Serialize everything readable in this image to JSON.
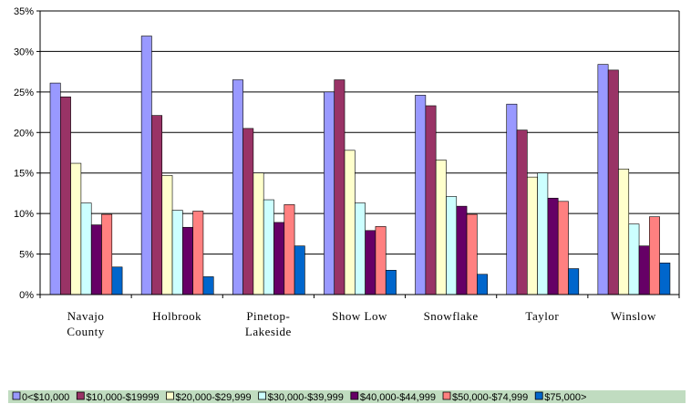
{
  "chart_data": {
    "type": "bar",
    "title": "",
    "xlabel": "",
    "ylabel": "",
    "categories": [
      [
        "Navajo",
        "County"
      ],
      [
        "Holbrook"
      ],
      [
        "Pinetop-",
        "Lakeside"
      ],
      [
        "Show Low"
      ],
      [
        "Snowflake"
      ],
      [
        "Taylor"
      ],
      [
        "Winslow"
      ]
    ],
    "ylim": [
      0,
      0.35
    ],
    "yticks": [
      "0%",
      "5%",
      "10%",
      "15%",
      "20%",
      "25%",
      "30%",
      "35%"
    ],
    "grid": true,
    "legend_position": "bottom",
    "series": [
      {
        "name": "0<$10,000",
        "color": "#9999ff",
        "values": [
          0.261,
          0.319,
          0.265,
          0.25,
          0.246,
          0.235,
          0.284
        ]
      },
      {
        "name": "$10,000-$19999",
        "color": "#993366",
        "values": [
          0.244,
          0.221,
          0.205,
          0.265,
          0.233,
          0.203,
          0.277
        ]
      },
      {
        "name": "$20,000-$29,999",
        "color": "#ffffcc",
        "values": [
          0.162,
          0.147,
          0.15,
          0.178,
          0.166,
          0.145,
          0.155
        ]
      },
      {
        "name": "$30,000-$39,999",
        "color": "#ccffff",
        "values": [
          0.113,
          0.104,
          0.117,
          0.113,
          0.121,
          0.15,
          0.087
        ]
      },
      {
        "name": "$40,000-$44,999",
        "color": "#660066",
        "values": [
          0.086,
          0.083,
          0.089,
          0.079,
          0.109,
          0.119,
          0.06
        ]
      },
      {
        "name": "$50,000-$74,999",
        "color": "#ff8080",
        "values": [
          0.099,
          0.103,
          0.111,
          0.084,
          0.099,
          0.115,
          0.096
        ]
      },
      {
        "name": "$75,000>",
        "color": "#0066cc",
        "values": [
          0.034,
          0.022,
          0.06,
          0.03,
          0.025,
          0.032,
          0.039
        ]
      }
    ]
  },
  "colors": {
    "legend_background": "#c0dcc0",
    "grid": "#000000",
    "axis": "#000000"
  }
}
